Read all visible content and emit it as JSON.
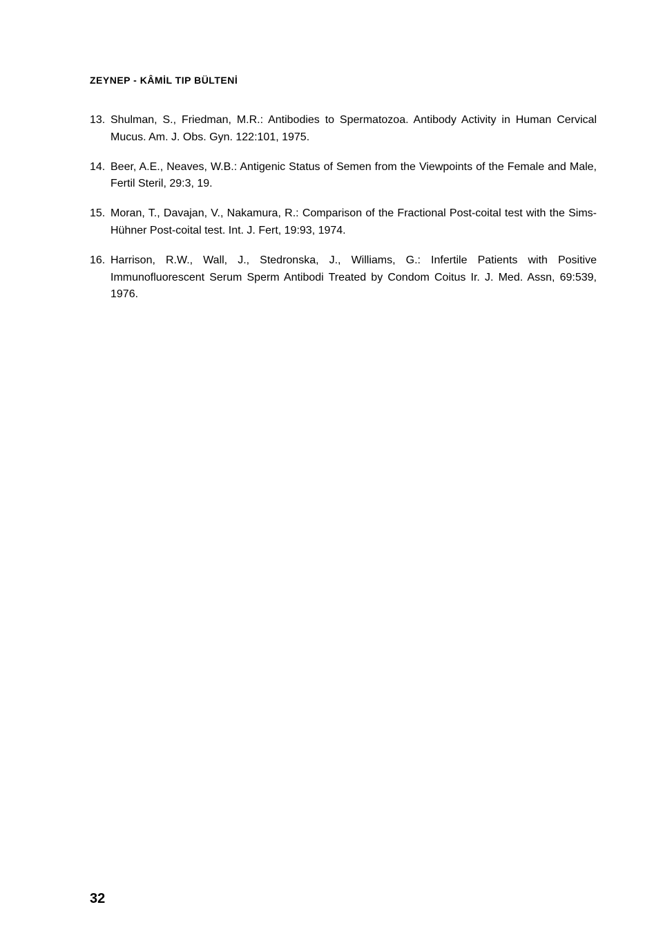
{
  "document": {
    "header": "ZEYNEP - KÂMİL TIP BÜLTENİ",
    "page_number": "32",
    "background_color": "#ffffff",
    "text_color": "#000000",
    "header_fontsize": 14,
    "body_fontsize": 16,
    "page_number_fontsize": 20,
    "references": [
      {
        "number": "13.",
        "text": "Shulman, S., Friedman, M.R.: Antibodies to Spermatozoa. Antibody Activity in Human Cervical Mucus. Am. J. Obs. Gyn. 122:101, 1975."
      },
      {
        "number": "14.",
        "text": "Beer, A.E., Neaves, W.B.: Antigenic Status of Semen from the Viewpoints of the Female and Male, Fertil Steril, 29:3, 19."
      },
      {
        "number": "15.",
        "text": "Moran, T., Davajan, V., Nakamura, R.: Comparison of the Fractional Post-coital test with the Sims-Hühner Post-coital test. Int. J. Fert, 19:93, 1974."
      },
      {
        "number": "16.",
        "text": "Harrison, R.W., Wall, J., Stedronska, J., Williams, G.: Infertile Patients with Positive Immunofluorescent Serum Sperm Antibodi Treated by Condom Coitus Ir. J. Med. Assn, 69:539, 1976."
      }
    ]
  }
}
